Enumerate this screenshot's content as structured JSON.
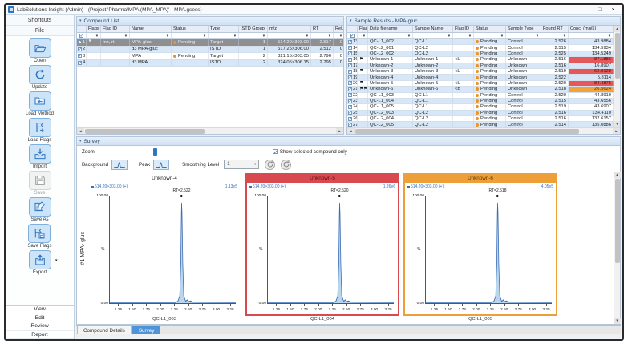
{
  "window": {
    "title": "LabSolutions Insight (Admin) - (Project 'Pharma\\MPA (MPA_MPA)' - MPA.gsess)",
    "minimize": "–",
    "maximize": "□",
    "close": "×"
  },
  "sidebar": {
    "shortcuts_label": "Shortcuts",
    "file_label": "File",
    "tools": [
      {
        "id": "open",
        "label": "Open",
        "icon": "open-folder-icon",
        "disabled": false,
        "dropdown": false
      },
      {
        "id": "update",
        "label": "Update",
        "icon": "refresh-icon",
        "disabled": false,
        "dropdown": false
      },
      {
        "id": "load-method",
        "label": "Load Method",
        "icon": "load-method-icon",
        "disabled": false,
        "dropdown": false
      },
      {
        "id": "load-flags",
        "label": "Load Flags",
        "icon": "load-flags-icon",
        "disabled": false,
        "dropdown": false
      },
      {
        "id": "import",
        "label": "Import",
        "icon": "import-tray-icon",
        "disabled": false,
        "dropdown": false
      },
      {
        "id": "save",
        "label": "Save",
        "icon": "save-floppy-icon",
        "disabled": true,
        "dropdown": false
      },
      {
        "id": "save-as",
        "label": "Save As",
        "icon": "save-as-icon",
        "disabled": false,
        "dropdown": false
      },
      {
        "id": "save-flags",
        "label": "Save Flags",
        "icon": "save-flags-icon",
        "disabled": false,
        "dropdown": false
      },
      {
        "id": "export",
        "label": "Export",
        "icon": "export-icon",
        "disabled": false,
        "dropdown": true
      }
    ],
    "nav": [
      "View",
      "Edit",
      "Review",
      "Report"
    ]
  },
  "compound_list": {
    "title": "Compound List",
    "columns": [
      "",
      "Flags",
      "Flag ID",
      "Name",
      "Status",
      "Type",
      "ISTD Group",
      "m/z",
      "RT",
      "Ref. Io..."
    ],
    "rows": [
      {
        "num": "1",
        "selected": true,
        "flag": "⚑",
        "flag_id": "mz, rt",
        "name": "MPA-gluc",
        "status": "Pending",
        "type": "Target",
        "istd_group": "1",
        "mz": "514.20>303.00",
        "rt": "2.517",
        "ref_io": "0"
      },
      {
        "num": "2",
        "selected": false,
        "flag": "",
        "flag_id": "",
        "name": "d3 MPA-gluc",
        "status": "",
        "type": "ISTD",
        "istd_group": "1",
        "mz": "517.25>306.00",
        "rt": "2.512",
        "ref_io": "0"
      },
      {
        "num": "3",
        "selected": false,
        "flag": "",
        "flag_id": "",
        "name": "MPA",
        "status": "Pending",
        "type": "Target",
        "istd_group": "2",
        "mz": "321.15>303.05",
        "rt": "2.796",
        "ref_io": "0"
      },
      {
        "num": "4",
        "selected": false,
        "flag": "",
        "flag_id": "",
        "name": "d3 MPA",
        "status": "",
        "type": "ISTD",
        "istd_group": "2",
        "mz": "324.05>306.15",
        "rt": "2.795",
        "ref_io": "0"
      }
    ]
  },
  "sample_results": {
    "title": "Sample Results - MPA-gluc",
    "columns": [
      "",
      "Flags",
      "Data filename",
      "Sample Name",
      "Flag ID",
      "Status",
      "Sample Type",
      "Found RT",
      "Conc. (mg/L)"
    ],
    "rows": [
      {
        "num": "13",
        "flag": "",
        "file": "QC-L1_002",
        "sample": "QC-L1",
        "flag_id": "",
        "status": "Pending",
        "sample_type": "Control",
        "found_rt": "2.526",
        "conc": "43.9884",
        "conc_hl": ""
      },
      {
        "num": "14",
        "flag": "",
        "file": "QC-L2_001",
        "sample": "QC-L2",
        "flag_id": "",
        "status": "Pending",
        "sample_type": "Control",
        "found_rt": "2.515",
        "conc": "134.5934",
        "conc_hl": ""
      },
      {
        "num": "15",
        "flag": "",
        "file": "QC-L2_002",
        "sample": "QC-L2",
        "flag_id": "",
        "status": "Pending",
        "sample_type": "Control",
        "found_rt": "2.525",
        "conc": "134.5249",
        "conc_hl": ""
      },
      {
        "num": "16",
        "flag": "⚑",
        "file": "Unknown-1",
        "sample": "Unknown-1",
        "flag_id": "<L",
        "status": "Pending",
        "sample_type": "Unknown",
        "found_rt": "2.516",
        "conc": "87.1886",
        "conc_hl": "red"
      },
      {
        "num": "17",
        "flag": "",
        "file": "Unknown-2",
        "sample": "Unknown-2",
        "flag_id": "",
        "status": "Pending",
        "sample_type": "Unknown",
        "found_rt": "2.516",
        "conc": "16.8907",
        "conc_hl": ""
      },
      {
        "num": "18",
        "flag": "⚑",
        "file": "Unknown-3",
        "sample": "Unknown-3",
        "flag_id": "<L",
        "status": "Pending",
        "sample_type": "Unknown",
        "found_rt": "2.519",
        "conc": "62.9128",
        "conc_hl": "red"
      },
      {
        "num": "19",
        "flag": "",
        "file": "Unknown-4",
        "sample": "Unknown-4",
        "flag_id": "",
        "status": "Pending",
        "sample_type": "Unknown",
        "found_rt": "2.522",
        "conc": "5.8114",
        "conc_hl": ""
      },
      {
        "num": "20",
        "flag": "⚑",
        "file": "Unknown-5",
        "sample": "Unknown-5",
        "flag_id": "<L",
        "status": "Pending",
        "sample_type": "Unknown",
        "found_rt": "2.520",
        "conc": "84.4875",
        "conc_hl": "red"
      },
      {
        "num": "21",
        "flag": "⚑⚑",
        "file": "Unknown-6",
        "sample": "Unknown-6",
        "flag_id": "<B",
        "status": "Pending",
        "sample_type": "Unknown",
        "found_rt": "2.518",
        "conc": "26.5624",
        "conc_hl": "orange"
      },
      {
        "num": "22",
        "flag": "",
        "file": "QC-L1_003",
        "sample": "QC-L1",
        "flag_id": "",
        "status": "Pending",
        "sample_type": "Control",
        "found_rt": "2.520",
        "conc": "44.8919",
        "conc_hl": ""
      },
      {
        "num": "23",
        "flag": "",
        "file": "QC-L1_004",
        "sample": "QC-L1",
        "flag_id": "",
        "status": "Pending",
        "sample_type": "Control",
        "found_rt": "2.515",
        "conc": "43.6556",
        "conc_hl": ""
      },
      {
        "num": "24",
        "flag": "",
        "file": "QC-L1_005",
        "sample": "QC-L1",
        "flag_id": "",
        "status": "Pending",
        "sample_type": "Control",
        "found_rt": "2.519",
        "conc": "43.6907",
        "conc_hl": ""
      },
      {
        "num": "25",
        "flag": "",
        "file": "QC-L2_003",
        "sample": "QC-L2",
        "flag_id": "",
        "status": "Pending",
        "sample_type": "Control",
        "found_rt": "2.516",
        "conc": "134.4110",
        "conc_hl": ""
      },
      {
        "num": "26",
        "flag": "",
        "file": "QC-L2_004",
        "sample": "QC-L2",
        "flag_id": "",
        "status": "Pending",
        "sample_type": "Control",
        "found_rt": "2.516",
        "conc": "132.6157",
        "conc_hl": ""
      },
      {
        "num": "27",
        "flag": "",
        "file": "QC-L2_005",
        "sample": "QC-L2",
        "flag_id": "",
        "status": "Pending",
        "sample_type": "Control",
        "found_rt": "2.514",
        "conc": "135.0886",
        "conc_hl": ""
      }
    ]
  },
  "survey": {
    "title": "Survey",
    "zoom_label": "Zoom",
    "show_selected_label": "Show selected compound only",
    "show_selected_checked": true,
    "background_label": "Background",
    "peak_label": "Peak",
    "smoothing_label": "Smoothing Level",
    "smoothing_value": "1",
    "channel_label": "#1 MPA- gluc",
    "axis": {
      "y_max": "100.00",
      "y_min": "0.00",
      "y_unit": "%",
      "x_min": 1.1,
      "x_max": 3.35,
      "x_ticks": [
        "1.25",
        "1.50",
        "1.75",
        "2.00",
        "2.25",
        "2.50",
        "2.75",
        "3.00",
        "3.25"
      ]
    },
    "plots": [
      {
        "title": "Unknown-4",
        "highlight": "none",
        "annotation": "514.20>303.00 (+)",
        "intensity": "1.13e5",
        "rt_label": "RT=2.522",
        "caption": "QC-L1_003"
      },
      {
        "title": "Unknown-5",
        "highlight": "red",
        "annotation": "514.20>303.00 (+)",
        "intensity": "1.26e6",
        "rt_label": "RT=2.520",
        "caption": "QC-L1_004"
      },
      {
        "title": "Unknown-6",
        "highlight": "orange",
        "annotation": "514.20>303.00 (+)",
        "intensity": "4.05e5",
        "rt_label": "RT=2.518",
        "caption": "QC-L1_005"
      }
    ]
  },
  "tabs": [
    {
      "label": "Compound Details",
      "active": false
    },
    {
      "label": "Survey",
      "active": true
    }
  ],
  "colors": {
    "accent": "#2f76c0",
    "pending": "#f0921e",
    "flag_red": "#e4575a",
    "flag_orange": "#f2a33c",
    "selected_row": "#8f8f8f",
    "tile_red": "#d94a50",
    "tile_orange": "#ef9f38",
    "trace": "#3a6db4"
  }
}
